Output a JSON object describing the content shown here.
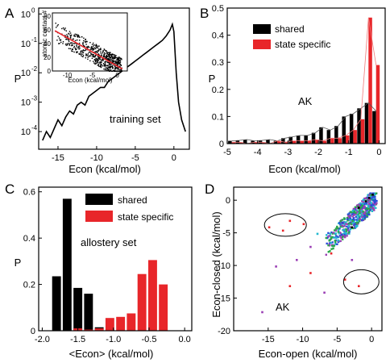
{
  "panels": [
    {
      "letter": "A",
      "type": "line",
      "xlabel": "Econ (kcal/mol)",
      "ylabel": "P",
      "annotation": "training set",
      "xlim": [
        -17.5,
        2
      ],
      "ylim_log10": [
        -4.6,
        0.2
      ],
      "log_scale_y": true,
      "xticks": [
        -15,
        -10,
        -5,
        0
      ],
      "yticks": [
        {
          "exp": "-4",
          "v": -4
        },
        {
          "exp": "-3",
          "v": -3
        },
        {
          "exp": "-2",
          "v": -2
        },
        {
          "exp": "-1",
          "v": -1
        },
        {
          "exp": "0",
          "v": 0
        }
      ],
      "x": [
        -17,
        -16.5,
        -16,
        -15.5,
        -15,
        -14.5,
        -14,
        -13.5,
        -13,
        -12.5,
        -12,
        -11.5,
        -11,
        -10.5,
        -10,
        -9.5,
        -9,
        -8.5,
        -8,
        -7.5,
        -7,
        -6.5,
        -6,
        -5.5,
        -5,
        -4.5,
        -4,
        -3.5,
        -3,
        -2.5,
        -2,
        -1.5,
        -1,
        -0.5,
        -0.2,
        0,
        0.3,
        0.6,
        1,
        1.5
      ],
      "y_log10": [
        -4.3,
        -4.0,
        -4.2,
        -3.9,
        -3.6,
        -3.8,
        -3.5,
        -3.3,
        -3.4,
        -3.1,
        -3.0,
        -3.1,
        -2.8,
        -2.7,
        -2.6,
        -2.5,
        -2.5,
        -2.3,
        -2.2,
        -2.1,
        -2.0,
        -1.9,
        -1.8,
        -1.7,
        -1.6,
        -1.5,
        -1.4,
        -1.3,
        -1.2,
        -1.1,
        -1.0,
        -0.9,
        -0.75,
        -0.55,
        -0.35,
        -0.6,
        -2.0,
        -3.0,
        -3.6,
        -4.0
      ],
      "inset": {
        "type": "scatter",
        "ylabel": "atomic contact #",
        "xlabel": "Econ (kcal/mol)",
        "xlim": [
          -13,
          2
        ],
        "ylim": [
          0,
          85
        ],
        "xticks": [
          -10,
          -5,
          0
        ],
        "yticks": [
          0,
          20,
          40,
          60,
          80
        ],
        "point_color": "#000000",
        "fit_color": "#e8262a",
        "fit_line": [
          [
            -12.5,
            59
          ],
          [
            1,
            3
          ]
        ]
      }
    },
    {
      "letter": "B",
      "type": "bar",
      "xlabel": "Econ (kcal/mol)",
      "ylabel": "P",
      "annotation": "AK",
      "xlim": [
        -5,
        0.2
      ],
      "ylim": [
        0,
        0.5
      ],
      "xticks": [
        -5,
        -4,
        -3,
        -2,
        -1,
        0
      ],
      "yticks": [
        0,
        0.1,
        0.2,
        0.3,
        0.4,
        0.5
      ],
      "series": [
        {
          "name": "shared",
          "color": "#000000",
          "x": [
            -4.85,
            -4.6,
            -4.35,
            -4.1,
            -3.85,
            -3.6,
            -3.35,
            -3.1,
            -2.85,
            -2.6,
            -2.35,
            -2.1,
            -1.85,
            -1.6,
            -1.35,
            -1.1,
            -0.85,
            -0.6,
            -0.35,
            -0.1
          ],
          "values": [
            0.01,
            0.012,
            0.015,
            0.01,
            0.012,
            0.015,
            0.01,
            0.02,
            0.025,
            0.03,
            0.03,
            0.04,
            0.06,
            0.05,
            0.065,
            0.1,
            0.11,
            0.13,
            0.15,
            0.12
          ]
        },
        {
          "name": "state specific",
          "color": "#e8262a",
          "x": [
            -4.85,
            -4.6,
            -4.35,
            -4.1,
            -3.85,
            -3.6,
            -3.35,
            -3.1,
            -2.85,
            -2.6,
            -2.35,
            -2.1,
            -1.85,
            -1.6,
            -1.35,
            -1.1,
            -0.85,
            -0.6,
            -0.35,
            -0.1
          ],
          "values": [
            0.005,
            0.005,
            0,
            0.005,
            0.005,
            0,
            0.01,
            0.005,
            0.01,
            0.01,
            0.01,
            0.015,
            0.01,
            0.02,
            0.02,
            0.03,
            0.05,
            0.09,
            0.465,
            0.29
          ]
        }
      ]
    },
    {
      "letter": "C",
      "type": "bar",
      "xlabel": "<Econ> (kcal/mol)",
      "ylabel": "P",
      "annotation": "allostery set",
      "xlim": [
        -2.05,
        0.1
      ],
      "ylim": [
        0,
        0.62
      ],
      "xticks": [
        -2.0,
        -1.5,
        -1.0,
        -0.5,
        0.0
      ],
      "xtick_labels": [
        "-2.0",
        "-1.5",
        "-1.0",
        "-0.5",
        "0.0"
      ],
      "yticks": [
        0,
        0.2,
        0.4,
        0.6
      ],
      "series": [
        {
          "name": "shared",
          "color": "#000000",
          "x": [
            -1.8,
            -1.65,
            -1.5,
            -1.35,
            -1.2,
            -1.05
          ],
          "values": [
            0.235,
            0.57,
            0.185,
            0.16,
            0.015,
            0.005
          ]
        },
        {
          "name": "state specific",
          "color": "#e8262a",
          "x": [
            -1.5,
            -1.35,
            -1.2,
            -1.05,
            -0.9,
            -0.75,
            -0.6,
            -0.45,
            -0.3
          ],
          "values": [
            0.01,
            0.005,
            0.01,
            0.055,
            0.06,
            0.075,
            0.245,
            0.305,
            0.2
          ]
        }
      ]
    },
    {
      "letter": "D",
      "type": "scatter",
      "xlabel": "Econ-open (kcal/mol)",
      "ylabel": "Econ-closed (kcal/mol)",
      "annotation": "AK",
      "xlim": [
        -20,
        1.5
      ],
      "ylim": [
        -20,
        2
      ],
      "xticks": [
        -15,
        -10,
        -5,
        0
      ],
      "yticks": [
        -20,
        -15,
        -10,
        -5,
        0
      ],
      "point_colors": [
        "#000000",
        "#e8262a",
        "#2a4bd7",
        "#2aa84a",
        "#9b3fb5",
        "#22b8d0"
      ]
    }
  ]
}
